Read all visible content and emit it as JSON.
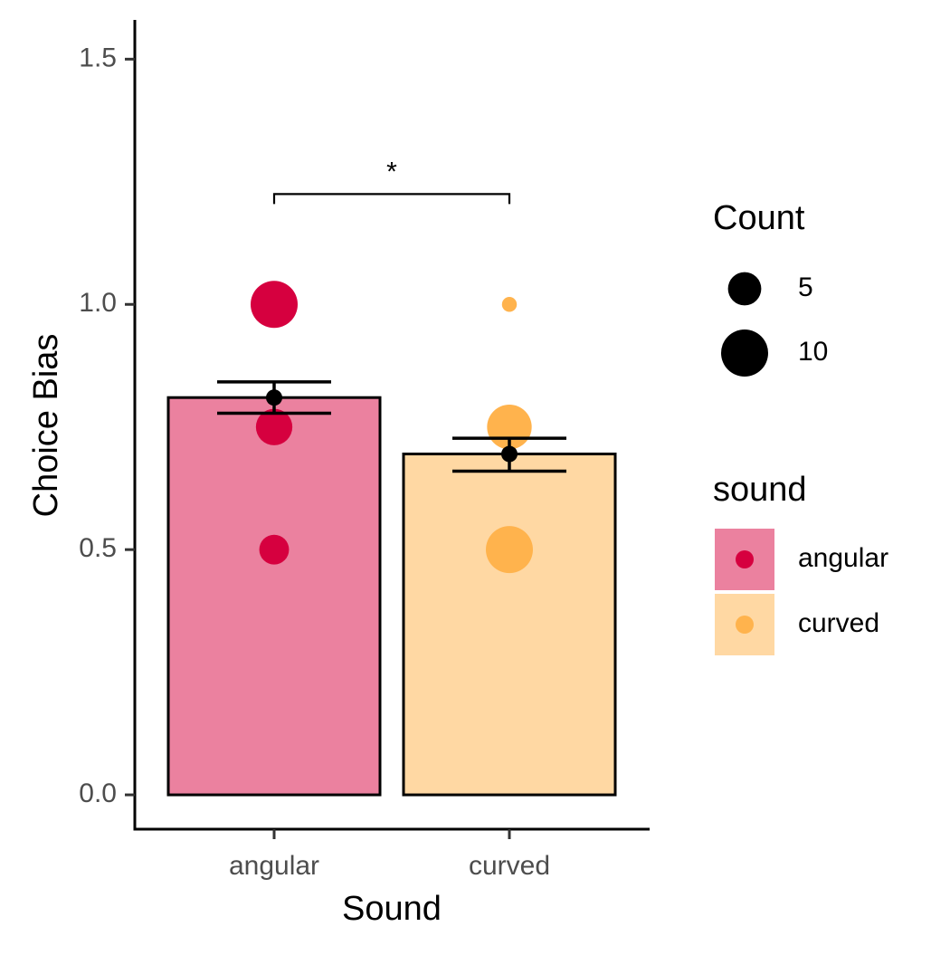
{
  "colors": {
    "angular_point": "#d6003f",
    "curved_point": "#ffb34d",
    "angular_bar": "#eb819f",
    "curved_bar": "#ffd8a3",
    "axis": "#000000"
  },
  "chart_data": {
    "type": "bar",
    "title": "",
    "xlabel": "Sound",
    "ylabel": "Choice Bias",
    "ylim": [
      -0.07,
      1.58
    ],
    "yticks": [
      0.0,
      0.5,
      1.0,
      1.5
    ],
    "ytick_labels": [
      "0.0",
      "0.5",
      "1.0",
      "1.5"
    ],
    "categories": [
      "angular",
      "curved"
    ],
    "values": [
      0.81,
      0.695
    ],
    "error_bars": [
      {
        "category": "angular",
        "mean": 0.81,
        "lower": 0.778,
        "upper": 0.842
      },
      {
        "category": "curved",
        "mean": 0.695,
        "lower": 0.66,
        "upper": 0.727
      }
    ],
    "points": [
      {
        "category": "angular",
        "y": 1.0,
        "count": 10
      },
      {
        "category": "angular",
        "y": 0.75,
        "count": 6
      },
      {
        "category": "angular",
        "y": 0.5,
        "count": 4
      },
      {
        "category": "curved",
        "y": 1.0,
        "count": 1
      },
      {
        "category": "curved",
        "y": 0.75,
        "count": 9
      },
      {
        "category": "curved",
        "y": 0.5,
        "count": 10
      }
    ],
    "significance": {
      "from": "angular",
      "to": "curved",
      "y": 1.225,
      "label": "*"
    },
    "legend": {
      "position": "right",
      "size": {
        "title": "Count",
        "entries": [
          {
            "label": "5",
            "count": 5
          },
          {
            "label": "10",
            "count": 10
          }
        ]
      },
      "color": {
        "title": "sound",
        "entries": [
          {
            "label": "angular",
            "key": "angular"
          },
          {
            "label": "curved",
            "key": "curved"
          }
        ]
      }
    },
    "grid": false
  }
}
